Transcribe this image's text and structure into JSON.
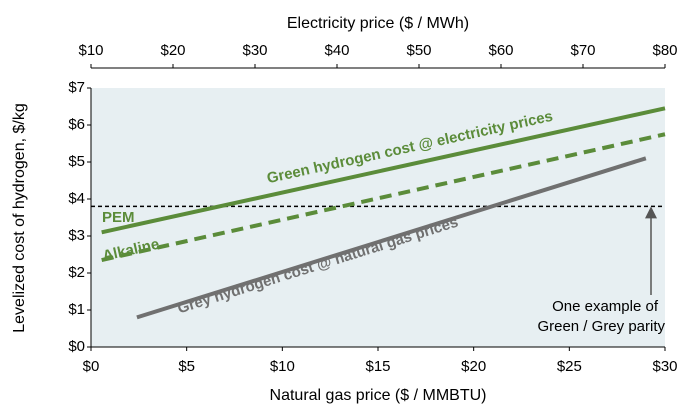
{
  "chart_data": {
    "type": "line",
    "xlabel": "Natural gas price ($ / MMBTU)",
    "x2label": "Electricity price ($ / MWh)",
    "ylabel": "Levelized cost of hydrogen, $/kg",
    "xlim": [
      0,
      30
    ],
    "xticks": [
      {
        "value": 0,
        "label": "$0"
      },
      {
        "value": 5,
        "label": "$5"
      },
      {
        "value": 10,
        "label": "$10"
      },
      {
        "value": 15,
        "label": "$15"
      },
      {
        "value": 20,
        "label": "$20"
      },
      {
        "value": 25,
        "label": "$25"
      },
      {
        "value": 30,
        "label": "$30"
      }
    ],
    "x2lim": [
      10,
      80
    ],
    "x2ticks": [
      {
        "value": 10,
        "label": "$10"
      },
      {
        "value": 20,
        "label": "$20"
      },
      {
        "value": 30,
        "label": "$30"
      },
      {
        "value": 40,
        "label": "$40"
      },
      {
        "value": 50,
        "label": "$50"
      },
      {
        "value": 60,
        "label": "$60"
      },
      {
        "value": 70,
        "label": "$70"
      },
      {
        "value": 80,
        "label": "$80"
      }
    ],
    "ylim": [
      0,
      7
    ],
    "yticks": [
      {
        "value": 0,
        "label": "$0"
      },
      {
        "value": 1,
        "label": "$1"
      },
      {
        "value": 2,
        "label": "$2"
      },
      {
        "value": 3,
        "label": "$3"
      },
      {
        "value": 4,
        "label": "$4"
      },
      {
        "value": 5,
        "label": "$5"
      },
      {
        "value": 6,
        "label": "$6"
      },
      {
        "value": 7,
        "label": "$7"
      }
    ],
    "series": [
      {
        "name": "PEM",
        "color": "#5b8c3a",
        "axis": "x2",
        "dashed": false,
        "x": [
          11.3,
          80
        ],
        "values": [
          3.1,
          6.45
        ]
      },
      {
        "name": "Alkaline",
        "color": "#5b8c3a",
        "axis": "x2",
        "dashed": true,
        "x": [
          11.3,
          80
        ],
        "values": [
          2.35,
          5.75
        ]
      },
      {
        "name": "Grey",
        "color": "#707070",
        "axis": "x",
        "dashed": false,
        "x": [
          2.4,
          29
        ],
        "values": [
          0.8,
          5.1
        ]
      }
    ],
    "parity": 3.8,
    "annotations": {
      "green": "Green hydrogen cost @ electricity prices",
      "grey": "Grey hydrogen cost @ natural gas prices",
      "note1": "One example of",
      "note2": "Green / Grey parity"
    }
  }
}
